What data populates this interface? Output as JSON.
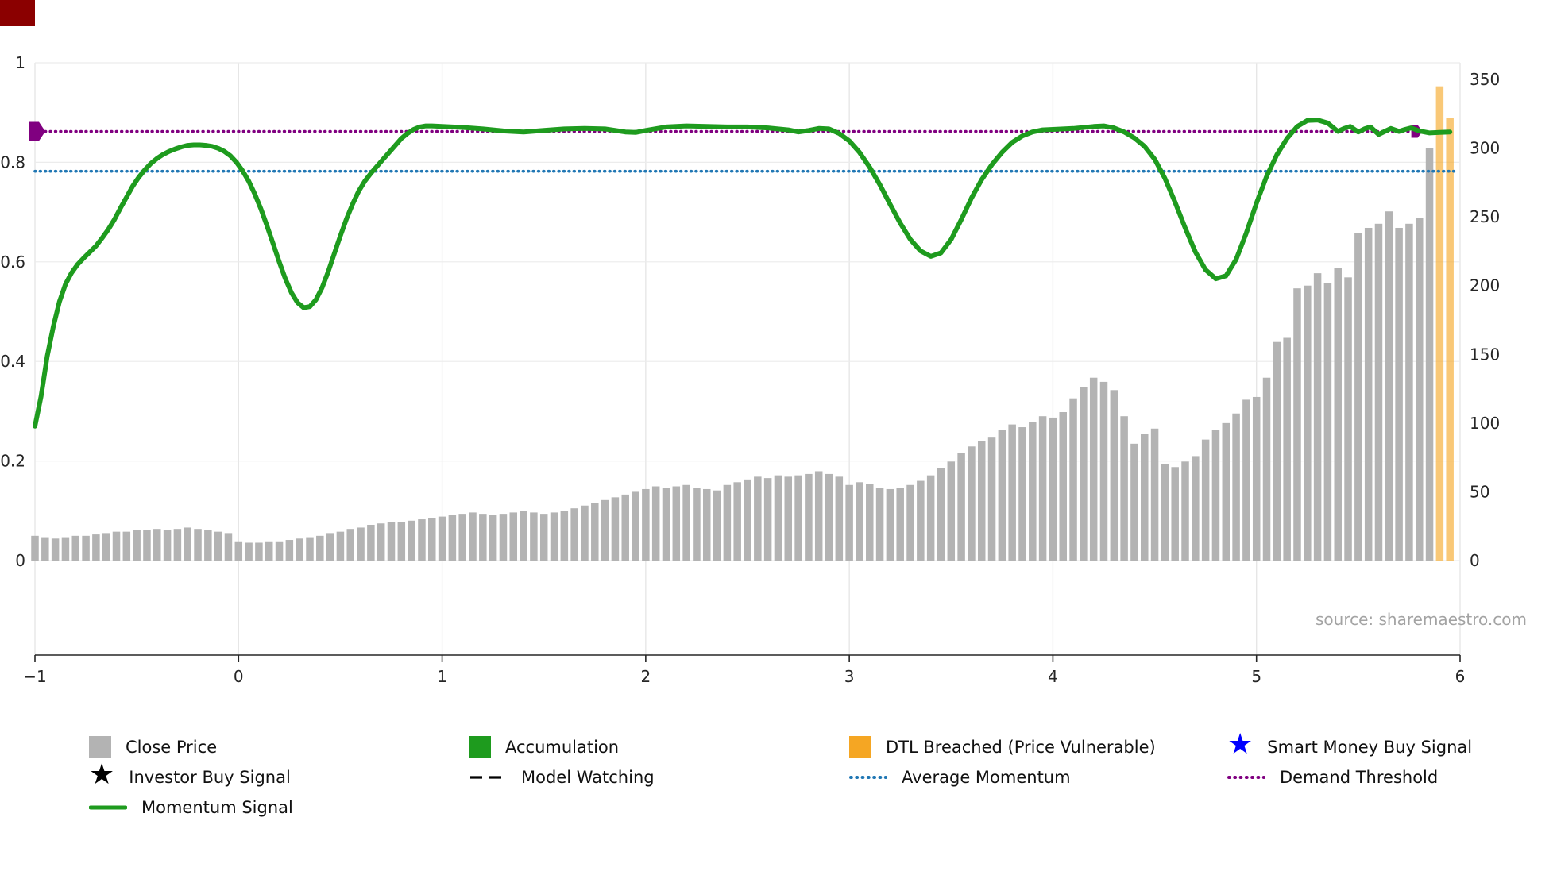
{
  "corner_badge": {
    "color": "#8b0000"
  },
  "source_text": "source: sharemaestro.com",
  "chart_data": {
    "type": "mixed-bar-line",
    "title": "",
    "xlabel": "",
    "grid": true,
    "xlim": [
      -1,
      6
    ],
    "x_ticks": {
      "values": [
        -1,
        0,
        1,
        2,
        3,
        4,
        5,
        6
      ],
      "labels": [
        "−1",
        "0",
        "1",
        "2",
        "3",
        "4",
        "5",
        "6"
      ]
    },
    "y_left": {
      "range": [
        0,
        1
      ],
      "tick_values": [
        0,
        0.2,
        0.4,
        0.6,
        0.8,
        1
      ],
      "tick_labels": [
        "0",
        "0.2",
        "0.4",
        "0.6",
        "0.8",
        "1"
      ]
    },
    "y_right": {
      "range": [
        0,
        350
      ],
      "tick_values": [
        0,
        50,
        100,
        150,
        200,
        250,
        300,
        350
      ],
      "tick_labels": [
        "0",
        "50",
        "100",
        "150",
        "200",
        "250",
        "300",
        "350"
      ]
    },
    "series": [
      {
        "name": "Close Price",
        "id": "close-price",
        "type": "bar",
        "axis": "right",
        "color": "#b3b3b3",
        "opacity": 1,
        "x_start": -1,
        "x_step": 0.05,
        "values": [
          18,
          17,
          16,
          17,
          18,
          18,
          19,
          20,
          21,
          21,
          22,
          22,
          23,
          22,
          23,
          24,
          23,
          22,
          21,
          20,
          14,
          13,
          13,
          14,
          14,
          15,
          16,
          17,
          18,
          20,
          21,
          23,
          24,
          26,
          27,
          28,
          28,
          29,
          30,
          31,
          32,
          33,
          34,
          35,
          34,
          33,
          34,
          35,
          36,
          35,
          34,
          35,
          36,
          38,
          40,
          42,
          44,
          46,
          48,
          50,
          52,
          54,
          53,
          54,
          55,
          53,
          52,
          51,
          55,
          57,
          59,
          61,
          60,
          62,
          61,
          62,
          63,
          65,
          63,
          61,
          55,
          57,
          56,
          53,
          52,
          53,
          55,
          58,
          62,
          67,
          72,
          78,
          83,
          87,
          90,
          95,
          99,
          97,
          101,
          105,
          104,
          108,
          118,
          126,
          133,
          130,
          124,
          105,
          85,
          92,
          96,
          70,
          68,
          72,
          76,
          88,
          95,
          100,
          107,
          117,
          119,
          133,
          159,
          162,
          198,
          200,
          209,
          202,
          213,
          206,
          238,
          242,
          245,
          254,
          242,
          245,
          249,
          300
        ]
      },
      {
        "name": "DTL Breached (Price Vulnerable)",
        "id": "dtl-breached",
        "type": "bar",
        "axis": "right",
        "color": "#f5a623",
        "opacity": 0.62,
        "x": [
          5.9,
          5.95
        ],
        "values": [
          345,
          322
        ]
      },
      {
        "name": "Average Momentum",
        "id": "average-momentum",
        "type": "hline",
        "axis": "left",
        "color": "#2077b4",
        "style": "dotted",
        "y": 0.782,
        "x_start": -1,
        "x_end": 5.97,
        "end_markers": false
      },
      {
        "name": "Demand Threshold",
        "id": "demand-threshold",
        "type": "hline",
        "axis": "left",
        "color": "#800080",
        "style": "dotted",
        "y": 0.862,
        "x_start": -1,
        "x_end": 5.78,
        "end_markers": true
      },
      {
        "name": "Momentum Signal",
        "id": "momentum-signal",
        "type": "line",
        "axis": "left",
        "color": "#1e9b1e",
        "points": [
          [
            -1.0,
            0.27
          ],
          [
            -0.97,
            0.33
          ],
          [
            -0.94,
            0.41
          ],
          [
            -0.91,
            0.47
          ],
          [
            -0.88,
            0.52
          ],
          [
            -0.85,
            0.555
          ],
          [
            -0.82,
            0.578
          ],
          [
            -0.79,
            0.595
          ],
          [
            -0.76,
            0.608
          ],
          [
            -0.73,
            0.62
          ],
          [
            -0.7,
            0.632
          ],
          [
            -0.67,
            0.648
          ],
          [
            -0.64,
            0.665
          ],
          [
            -0.61,
            0.685
          ],
          [
            -0.58,
            0.708
          ],
          [
            -0.55,
            0.73
          ],
          [
            -0.52,
            0.752
          ],
          [
            -0.49,
            0.77
          ],
          [
            -0.46,
            0.785
          ],
          [
            -0.43,
            0.798
          ],
          [
            -0.4,
            0.808
          ],
          [
            -0.37,
            0.816
          ],
          [
            -0.34,
            0.822
          ],
          [
            -0.31,
            0.827
          ],
          [
            -0.28,
            0.831
          ],
          [
            -0.25,
            0.834
          ],
          [
            -0.22,
            0.835
          ],
          [
            -0.19,
            0.835
          ],
          [
            -0.16,
            0.834
          ],
          [
            -0.13,
            0.832
          ],
          [
            -0.1,
            0.828
          ],
          [
            -0.07,
            0.822
          ],
          [
            -0.04,
            0.813
          ],
          [
            -0.01,
            0.8
          ],
          [
            0.02,
            0.783
          ],
          [
            0.05,
            0.762
          ],
          [
            0.08,
            0.736
          ],
          [
            0.11,
            0.706
          ],
          [
            0.14,
            0.672
          ],
          [
            0.17,
            0.636
          ],
          [
            0.2,
            0.6
          ],
          [
            0.23,
            0.566
          ],
          [
            0.26,
            0.538
          ],
          [
            0.29,
            0.518
          ],
          [
            0.32,
            0.508
          ],
          [
            0.35,
            0.51
          ],
          [
            0.38,
            0.524
          ],
          [
            0.41,
            0.548
          ],
          [
            0.44,
            0.58
          ],
          [
            0.47,
            0.616
          ],
          [
            0.5,
            0.652
          ],
          [
            0.53,
            0.686
          ],
          [
            0.56,
            0.716
          ],
          [
            0.59,
            0.742
          ],
          [
            0.62,
            0.762
          ],
          [
            0.65,
            0.778
          ],
          [
            0.68,
            0.792
          ],
          [
            0.71,
            0.806
          ],
          [
            0.74,
            0.82
          ],
          [
            0.77,
            0.834
          ],
          [
            0.8,
            0.848
          ],
          [
            0.83,
            0.858
          ],
          [
            0.86,
            0.866
          ],
          [
            0.89,
            0.871
          ],
          [
            0.92,
            0.873
          ],
          [
            0.95,
            0.873
          ],
          [
            1.0,
            0.872
          ],
          [
            1.1,
            0.87
          ],
          [
            1.2,
            0.867
          ],
          [
            1.3,
            0.863
          ],
          [
            1.4,
            0.861
          ],
          [
            1.5,
            0.864
          ],
          [
            1.6,
            0.867
          ],
          [
            1.7,
            0.868
          ],
          [
            1.8,
            0.867
          ],
          [
            1.9,
            0.861
          ],
          [
            1.95,
            0.86
          ],
          [
            2.0,
            0.864
          ],
          [
            2.1,
            0.871
          ],
          [
            2.2,
            0.873
          ],
          [
            2.3,
            0.872
          ],
          [
            2.4,
            0.871
          ],
          [
            2.5,
            0.871
          ],
          [
            2.6,
            0.869
          ],
          [
            2.7,
            0.865
          ],
          [
            2.75,
            0.861
          ],
          [
            2.8,
            0.864
          ],
          [
            2.85,
            0.868
          ],
          [
            2.9,
            0.867
          ],
          [
            2.95,
            0.858
          ],
          [
            3.0,
            0.843
          ],
          [
            3.05,
            0.82
          ],
          [
            3.1,
            0.79
          ],
          [
            3.15,
            0.755
          ],
          [
            3.2,
            0.716
          ],
          [
            3.25,
            0.678
          ],
          [
            3.3,
            0.645
          ],
          [
            3.35,
            0.622
          ],
          [
            3.4,
            0.611
          ],
          [
            3.45,
            0.618
          ],
          [
            3.5,
            0.645
          ],
          [
            3.55,
            0.685
          ],
          [
            3.6,
            0.728
          ],
          [
            3.65,
            0.765
          ],
          [
            3.7,
            0.795
          ],
          [
            3.75,
            0.82
          ],
          [
            3.8,
            0.84
          ],
          [
            3.85,
            0.853
          ],
          [
            3.9,
            0.861
          ],
          [
            3.95,
            0.865
          ],
          [
            4.0,
            0.866
          ],
          [
            4.1,
            0.868
          ],
          [
            4.2,
            0.872
          ],
          [
            4.25,
            0.873
          ],
          [
            4.3,
            0.869
          ],
          [
            4.35,
            0.861
          ],
          [
            4.4,
            0.849
          ],
          [
            4.45,
            0.832
          ],
          [
            4.5,
            0.806
          ],
          [
            4.55,
            0.768
          ],
          [
            4.6,
            0.72
          ],
          [
            4.65,
            0.668
          ],
          [
            4.7,
            0.62
          ],
          [
            4.75,
            0.584
          ],
          [
            4.8,
            0.566
          ],
          [
            4.85,
            0.572
          ],
          [
            4.9,
            0.605
          ],
          [
            4.95,
            0.658
          ],
          [
            5.0,
            0.718
          ],
          [
            5.05,
            0.772
          ],
          [
            5.1,
            0.815
          ],
          [
            5.15,
            0.848
          ],
          [
            5.2,
            0.872
          ],
          [
            5.25,
            0.884
          ],
          [
            5.3,
            0.885
          ],
          [
            5.35,
            0.879
          ],
          [
            5.4,
            0.862
          ],
          [
            5.43,
            0.868
          ],
          [
            5.46,
            0.872
          ],
          [
            5.5,
            0.861
          ],
          [
            5.53,
            0.867
          ],
          [
            5.56,
            0.871
          ],
          [
            5.6,
            0.856
          ],
          [
            5.63,
            0.862
          ],
          [
            5.66,
            0.868
          ],
          [
            5.7,
            0.862
          ],
          [
            5.73,
            0.866
          ],
          [
            5.76,
            0.869
          ],
          [
            5.8,
            0.863
          ],
          [
            5.85,
            0.859
          ],
          [
            5.9,
            0.86
          ],
          [
            5.95,
            0.861
          ]
        ]
      }
    ]
  },
  "legend": {
    "items": [
      {
        "id": "close-price",
        "label": "Close Price",
        "marker": "square",
        "color": "#b3b3b3"
      },
      {
        "id": "accumulation",
        "label": "Accumulation",
        "marker": "square",
        "color": "#1e9b1e"
      },
      {
        "id": "dtl-breached",
        "label": "DTL Breached (Price Vulnerable)",
        "marker": "square",
        "color": "#f5a623"
      },
      {
        "id": "smart-money-buy-signal",
        "label": "Smart Money Buy Signal",
        "marker": "star",
        "color": "#0000ff"
      },
      {
        "id": "investor-buy-signal",
        "label": "Investor Buy Signal",
        "marker": "star",
        "color": "#000000"
      },
      {
        "id": "model-watching",
        "label": "Model Watching",
        "marker": "dashed-line",
        "color": "#000000"
      },
      {
        "id": "average-momentum",
        "label": "Average Momentum",
        "marker": "dotted-line",
        "color": "#2077b4"
      },
      {
        "id": "demand-threshold",
        "label": "Demand Threshold",
        "marker": "dotted-line",
        "color": "#800080"
      },
      {
        "id": "momentum-signal",
        "label": "Momentum Signal",
        "marker": "solid-line",
        "color": "#1e9b1e"
      }
    ]
  }
}
